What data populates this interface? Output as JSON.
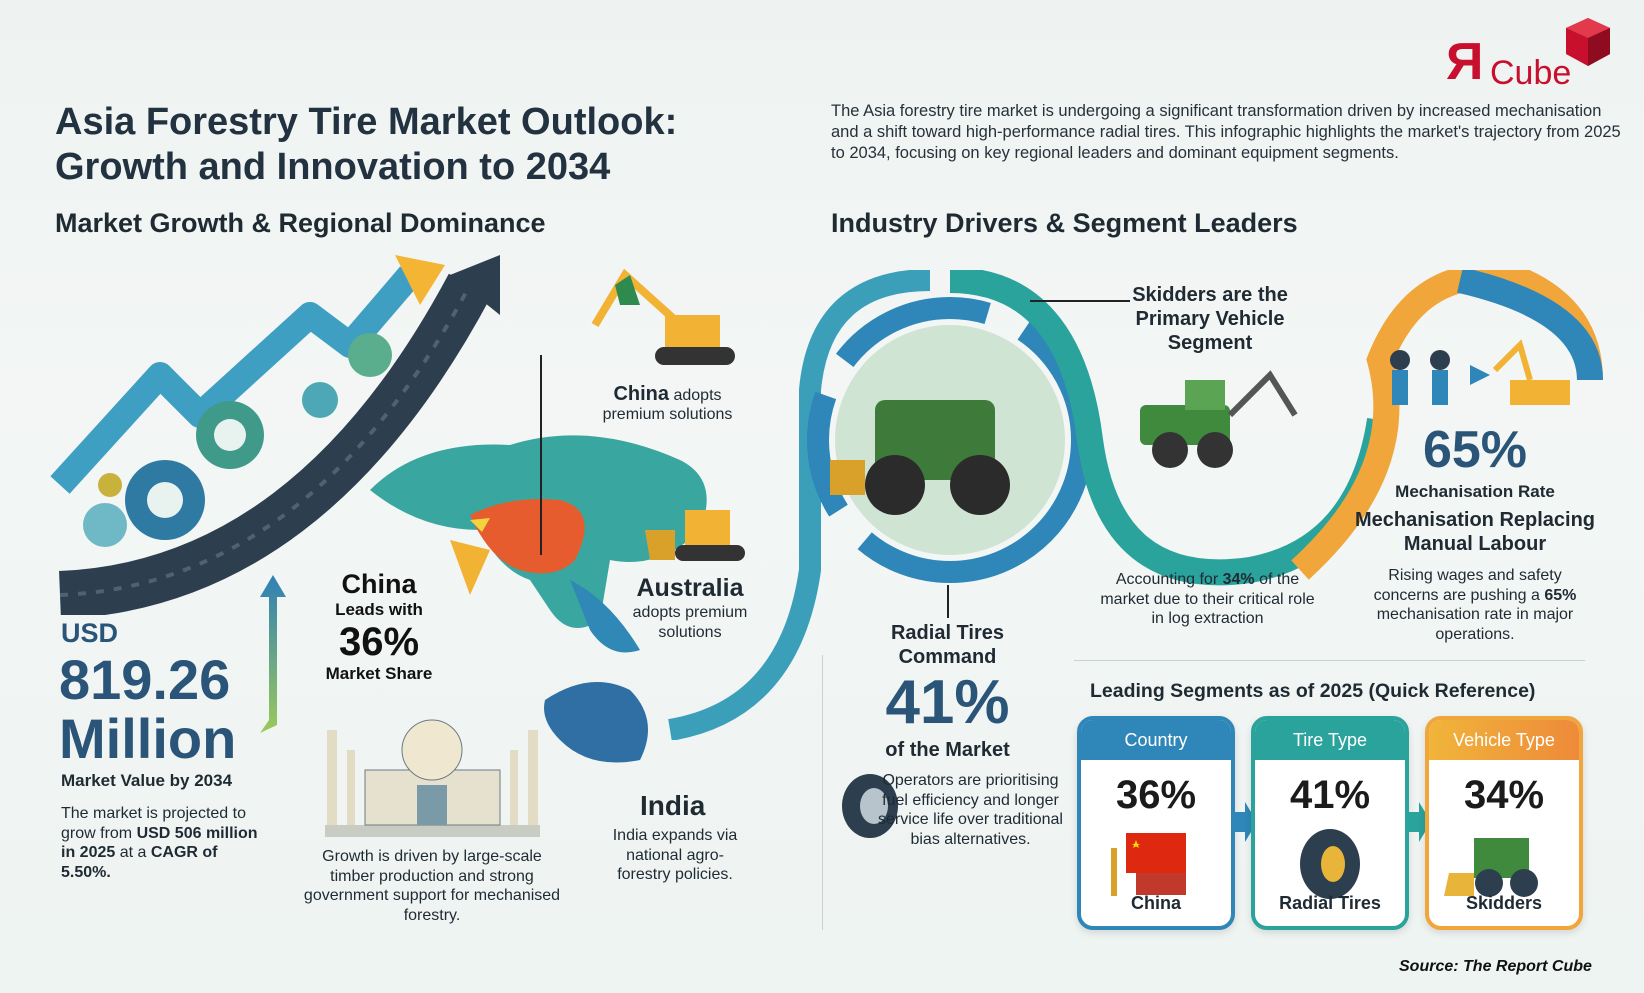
{
  "logo": {
    "text": "ЯCube",
    "letter": "Я",
    "word": "Cube",
    "color": "#c8102e"
  },
  "title": {
    "line1": "Asia Forestry Tire Market Outlook:",
    "line2": "Growth and Innovation to 2034"
  },
  "intro": "The Asia forestry tire market is undergoing a significant transformation driven by increased mechanisation and a shift toward high-performance radial tires. This infographic highlights the market's trajectory from 2025 to 2034, focusing on key regional leaders and dominant equipment segments.",
  "left": {
    "heading": "Market Growth & Regional Dominance",
    "value": {
      "currency": "USD",
      "amount": "819.26",
      "unit": "Million",
      "caption": "Market Value by 2034"
    },
    "projection": {
      "p1": "The market is projected to grow from ",
      "b1": "USD 506 million in 2025",
      "p2": " at a ",
      "b2": "CAGR of 5.50%."
    },
    "china_share": {
      "name": "China",
      "lead": "Leads with",
      "pct": "36%",
      "caption": "Market Share"
    },
    "china_adopts": {
      "name": "China",
      "rest": " adopts",
      "line2": "premium solutions"
    },
    "australia": {
      "name": "Australia",
      "caption": "adopts premium solutions"
    },
    "india": {
      "name": "India",
      "caption": "India expands via national agro-forestry policies."
    },
    "growth_text": "Growth is driven by large-scale timber production and strong government support for mechanised forestry."
  },
  "right": {
    "heading": "Industry Drivers & Segment Leaders",
    "skidders": {
      "title": "Skidders are the Primary Vehicle Segment",
      "p1": "Accounting for ",
      "b": "34%",
      "p2": " of the market due to their critical role in log extraction"
    },
    "mechanisation": {
      "pct": "65%",
      "rate_label": "Mechanisation Rate",
      "title": "Mechanisation Replacing Manual Labour",
      "p1": "Rising wages and safety concerns are pushing a ",
      "b": "65%",
      "p2": " mechanisation rate in major operations."
    },
    "radial": {
      "title": "Radial Tires Command",
      "pct": "41%",
      "caption": "of the Market",
      "text": "Operators are prioritising fuel efficiency and longer service life over traditional bias alternatives."
    },
    "segments": {
      "heading": "Leading Segments as of 2025 (Quick Reference)",
      "cards": [
        {
          "header": "Country",
          "pct": "36%",
          "label": "China",
          "color": "#2f86b8",
          "icon": "china-flag-icon"
        },
        {
          "header": "Tire Type",
          "pct": "41%",
          "label": "Radial Tires",
          "color": "#2aa39c",
          "icon": "tire-icon"
        },
        {
          "header": "Vehicle Type",
          "pct": "34%",
          "label": "Skidders",
          "color": "#f0a63a",
          "icon": "skidder-icon"
        }
      ]
    }
  },
  "source": "Source: The Report Cube"
}
